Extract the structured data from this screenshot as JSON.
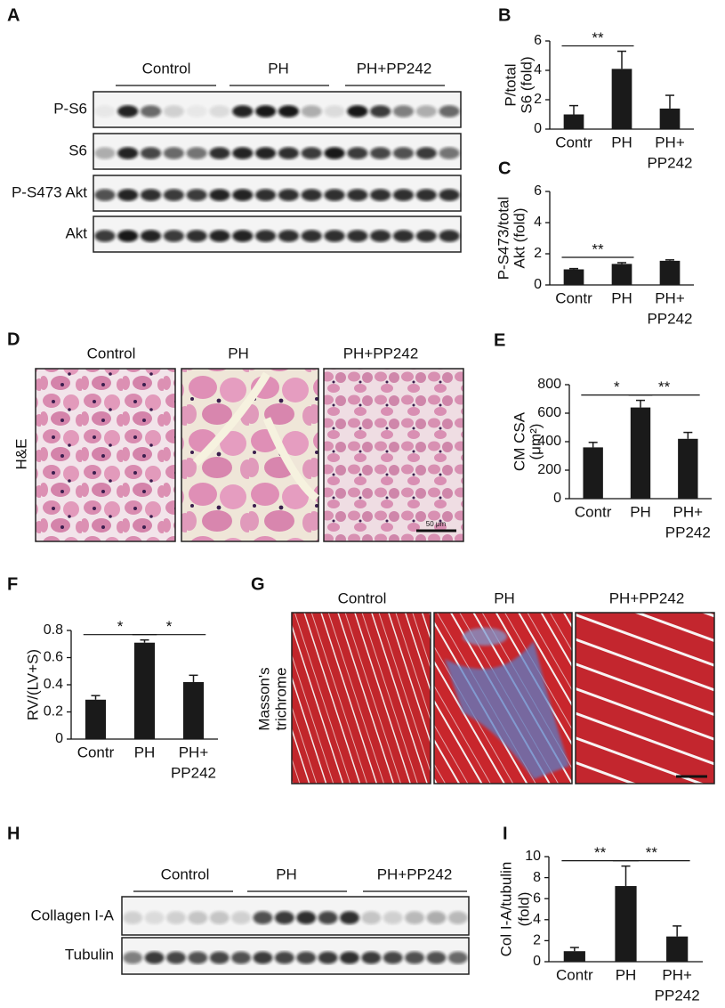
{
  "blot_a": {
    "label": "A",
    "groups": [
      "Control",
      "PH",
      "PH+PP242"
    ],
    "rows": [
      "P-S6",
      "S6",
      "P-S473 Akt",
      "Akt"
    ]
  },
  "histology_d": {
    "label": "D",
    "columns": [
      "Control",
      "PH",
      "PH+PP242"
    ],
    "row_label": "H&E",
    "scale_label": "50 μm"
  },
  "histology_g": {
    "label": "G",
    "columns": [
      "Control",
      "PH",
      "PH+PP242"
    ],
    "row_label": [
      "Masson's",
      "trichrome"
    ]
  },
  "blot_h": {
    "label": "H",
    "groups": [
      "Control",
      "PH",
      "PH+PP242"
    ],
    "rows": [
      "Collagen I-A",
      "Tubulin"
    ]
  },
  "chart_data": [
    {
      "type": "bar",
      "panel": "B",
      "ylabel": [
        "P/total",
        "S6 (fold)"
      ],
      "categories": [
        "Contr",
        "PH",
        [
          "PH+",
          "PP242"
        ]
      ],
      "values": [
        1.0,
        4.1,
        1.4
      ],
      "errors": [
        0.6,
        1.2,
        0.9
      ],
      "ylim": [
        0,
        6
      ],
      "yticks": [
        0,
        2,
        4,
        6
      ],
      "significance": [
        "**"
      ],
      "color": "#1a1a1a"
    },
    {
      "type": "bar",
      "panel": "C",
      "ylabel": [
        "P-S473/total",
        "Akt (fold)"
      ],
      "categories": [
        "Contr",
        "PH",
        [
          "PH+",
          "PP242"
        ]
      ],
      "values": [
        1.0,
        1.35,
        1.55
      ],
      "errors": [
        0.05,
        0.08,
        0.06
      ],
      "ylim": [
        0,
        6
      ],
      "yticks": [
        0,
        2,
        4,
        6
      ],
      "significance": [
        "**"
      ],
      "color": "#1a1a1a"
    },
    {
      "type": "bar",
      "panel": "E",
      "ylabel": [
        "CM CSA",
        "(μm²)"
      ],
      "categories": [
        "Contr",
        "PH",
        [
          "PH+",
          "PP242"
        ]
      ],
      "values": [
        360,
        640,
        420
      ],
      "errors": [
        35,
        50,
        45
      ],
      "ylim": [
        0,
        800
      ],
      "yticks": [
        0,
        200,
        400,
        600,
        800
      ],
      "significance": [
        "*",
        "**"
      ],
      "color": "#1a1a1a"
    },
    {
      "type": "bar",
      "panel": "F",
      "ylabel": "RV/(LV+S)",
      "categories": [
        "Contr",
        "PH",
        [
          "PH+",
          "PP242"
        ]
      ],
      "values": [
        0.29,
        0.71,
        0.42
      ],
      "errors": [
        0.03,
        0.02,
        0.05
      ],
      "ylim": [
        0,
        0.8
      ],
      "yticks": [
        0,
        0.2,
        0.4,
        0.6,
        0.8
      ],
      "significance": [
        "*",
        "*"
      ],
      "color": "#1a1a1a"
    },
    {
      "type": "bar",
      "panel": "I",
      "ylabel": [
        "Col I-A/tubulin",
        "(fold)"
      ],
      "categories": [
        "Contr",
        "PH",
        [
          "PH+",
          "PP242"
        ]
      ],
      "values": [
        1.0,
        7.2,
        2.4
      ],
      "errors": [
        0.35,
        1.9,
        1.0
      ],
      "ylim": [
        0,
        10
      ],
      "yticks": [
        0,
        2,
        4,
        6,
        8,
        10
      ],
      "significance": [
        "**",
        "**"
      ],
      "color": "#1a1a1a"
    }
  ]
}
